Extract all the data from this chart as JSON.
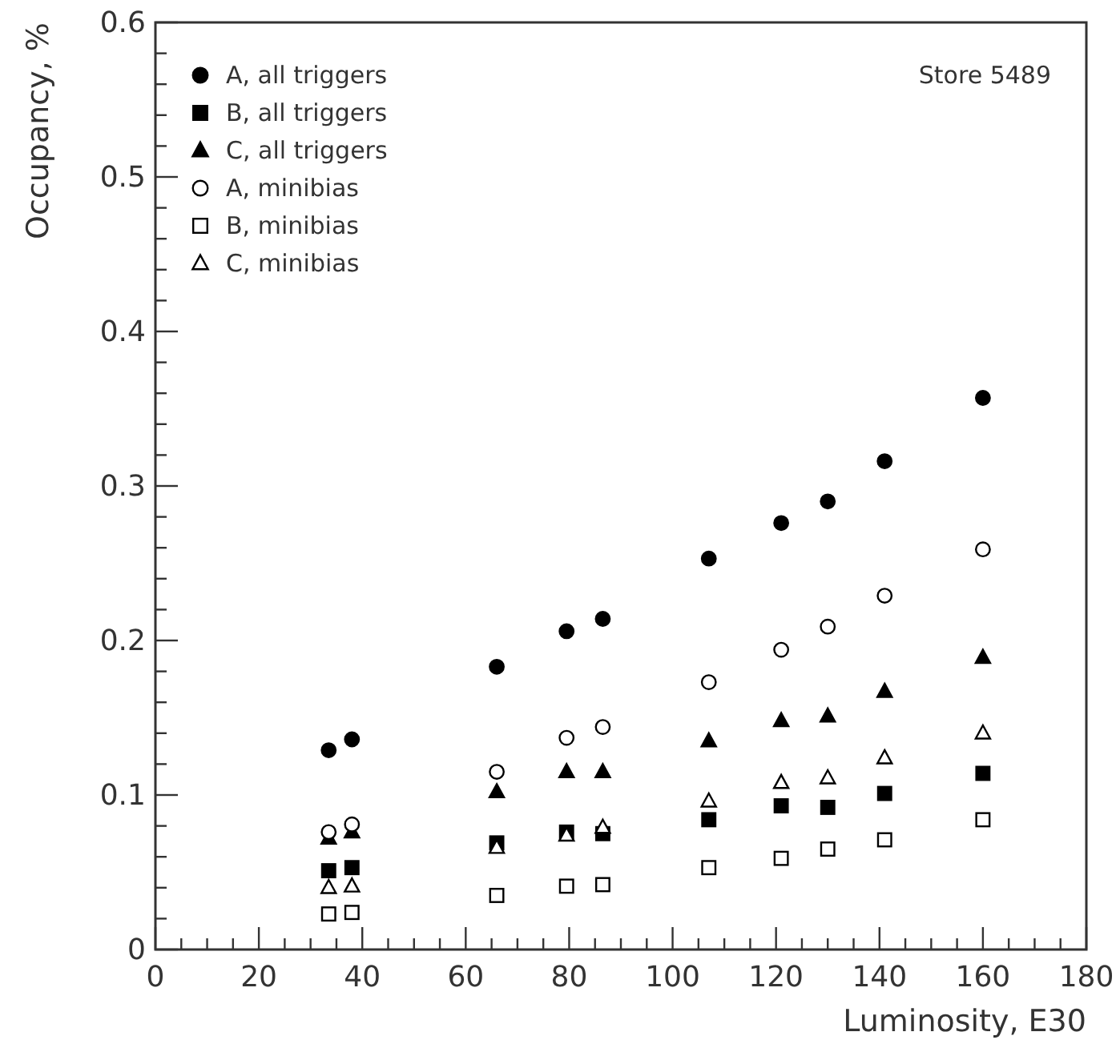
{
  "chart_data": {
    "type": "scatter",
    "xlabel": "Luminosity, E30",
    "ylabel": "Occupancy, %",
    "annotations": [
      "Store 5489"
    ],
    "x": [
      33.5,
      38,
      66,
      79.5,
      86.5,
      107,
      121,
      130,
      141,
      160
    ],
    "xlim": [
      0,
      180
    ],
    "ylim": [
      0,
      0.6
    ],
    "xticks": [
      0,
      {
        "value": 5,
        "label": null
      },
      {
        "value": 10,
        "label": null
      },
      {
        "value": 15,
        "label": null
      },
      20,
      {
        "value": 25,
        "label": null
      },
      {
        "value": 30,
        "label": null
      },
      {
        "value": 35,
        "label": null
      },
      40,
      {
        "value": 45,
        "label": null
      },
      {
        "value": 50,
        "label": null
      },
      {
        "value": 55,
        "label": null
      },
      60,
      {
        "value": 65,
        "label": null
      },
      {
        "value": 70,
        "label": null
      },
      {
        "value": 75,
        "label": null
      },
      80,
      {
        "value": 85,
        "label": null
      },
      {
        "value": 90,
        "label": null
      },
      {
        "value": 95,
        "label": null
      },
      100,
      {
        "value": 105,
        "label": null
      },
      {
        "value": 110,
        "label": null
      },
      {
        "value": 115,
        "label": null
      },
      120,
      {
        "value": 125,
        "label": null
      },
      {
        "value": 130,
        "label": null
      },
      {
        "value": 135,
        "label": null
      },
      140,
      {
        "value": 145,
        "label": null
      },
      {
        "value": 150,
        "label": null
      },
      {
        "value": 155,
        "label": null
      },
      160,
      {
        "value": 165,
        "label": null
      },
      {
        "value": 170,
        "label": null
      },
      {
        "value": 175,
        "label": null
      },
      180
    ],
    "yticks": [
      0,
      {
        "value": 0.02,
        "label": null
      },
      {
        "value": 0.04,
        "label": null
      },
      {
        "value": 0.06,
        "label": null
      },
      {
        "value": 0.08,
        "label": null
      },
      0.1,
      {
        "value": 0.12,
        "label": null
      },
      {
        "value": 0.14,
        "label": null
      },
      {
        "value": 0.16,
        "label": null
      },
      {
        "value": 0.18,
        "label": null
      },
      0.2,
      {
        "value": 0.22,
        "label": null
      },
      {
        "value": 0.24,
        "label": null
      },
      {
        "value": 0.26,
        "label": null
      },
      {
        "value": 0.28,
        "label": null
      },
      0.3,
      {
        "value": 0.32,
        "label": null
      },
      {
        "value": 0.34,
        "label": null
      },
      {
        "value": 0.36,
        "label": null
      },
      {
        "value": 0.38,
        "label": null
      },
      0.4,
      {
        "value": 0.42,
        "label": null
      },
      {
        "value": 0.44,
        "label": null
      },
      {
        "value": 0.46,
        "label": null
      },
      {
        "value": 0.48,
        "label": null
      },
      0.5,
      {
        "value": 0.52,
        "label": null
      },
      {
        "value": 0.54,
        "label": null
      },
      {
        "value": 0.56,
        "label": null
      },
      {
        "value": 0.58,
        "label": null
      },
      0.6
    ],
    "grid": false,
    "legend": "top left",
    "series": [
      {
        "name": "A, all triggers",
        "color": "#000000",
        "marker": "circle",
        "values": [
          0.129,
          0.136,
          0.183,
          0.206,
          0.214,
          0.253,
          0.276,
          0.29,
          0.316,
          0.357
        ]
      },
      {
        "name": "B, all triggers",
        "color": "#000000",
        "marker": "square",
        "values": [
          0.051,
          0.053,
          0.069,
          0.076,
          0.075,
          0.084,
          0.093,
          0.092,
          0.101,
          0.114
        ]
      },
      {
        "name": "C, all triggers",
        "color": "#000000",
        "marker": "triangle",
        "values": [
          0.072,
          0.076,
          0.102,
          0.115,
          0.115,
          0.135,
          0.148,
          0.151,
          0.167,
          0.189
        ]
      },
      {
        "name": "A, minibias",
        "color": "#ffffff",
        "marker": "circle",
        "values": [
          0.076,
          0.081,
          0.115,
          0.137,
          0.144,
          0.173,
          0.194,
          0.209,
          0.229,
          0.259
        ]
      },
      {
        "name": "B, minibias",
        "color": "#ffffff",
        "marker": "square",
        "values": [
          0.023,
          0.024,
          0.035,
          0.041,
          0.042,
          0.053,
          0.059,
          0.065,
          0.071,
          0.084
        ]
      },
      {
        "name": "C, minibias",
        "color": "#ffffff",
        "marker": "triangle",
        "values": [
          0.04,
          0.041,
          0.066,
          0.074,
          0.079,
          0.096,
          0.108,
          0.111,
          0.124,
          0.14
        ]
      }
    ]
  }
}
